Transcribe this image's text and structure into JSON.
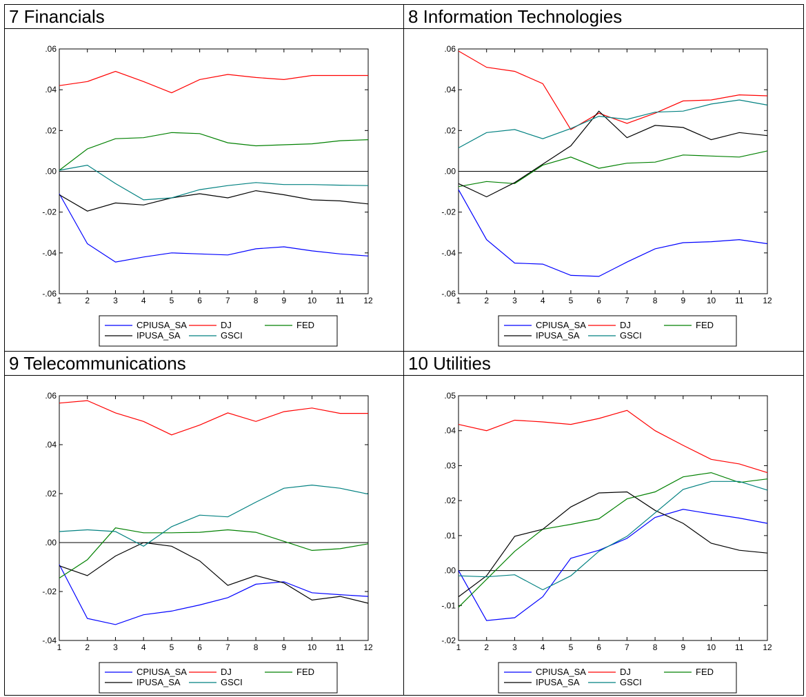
{
  "panels": [
    {
      "title": "7 Financials",
      "chart_data": {
        "type": "line",
        "x": [
          1,
          2,
          3,
          4,
          5,
          6,
          7,
          8,
          9,
          10,
          11,
          12
        ],
        "ylim": [
          -0.06,
          0.06
        ],
        "yticks": [
          -0.06,
          -0.04,
          -0.02,
          0.0,
          0.02,
          0.04,
          0.06
        ],
        "ytick_labels": [
          "-.06",
          "-.04",
          "-.02",
          ".00",
          ".02",
          ".04",
          ".06"
        ],
        "series": [
          {
            "name": "CPIUSA_SA",
            "color": "#0000ff",
            "values": [
              -0.011,
              -0.0355,
              -0.0445,
              -0.042,
              -0.04,
              -0.0405,
              -0.041,
              -0.038,
              -0.037,
              -0.039,
              -0.0405,
              -0.0415
            ]
          },
          {
            "name": "DJ",
            "color": "#ff0000",
            "values": [
              0.042,
              0.044,
              0.049,
              0.044,
              0.0385,
              0.045,
              0.0475,
              0.046,
              0.045,
              0.047,
              0.047,
              0.047
            ]
          },
          {
            "name": "FED",
            "color": "#008000",
            "values": [
              0.0005,
              0.011,
              0.016,
              0.0165,
              0.019,
              0.0185,
              0.014,
              0.0125,
              0.013,
              0.0135,
              0.015,
              0.0155
            ]
          },
          {
            "name": "IPUSA_SA",
            "color": "#000000",
            "values": [
              -0.0115,
              -0.0195,
              -0.0155,
              -0.0165,
              -0.013,
              -0.011,
              -0.013,
              -0.0095,
              -0.0115,
              -0.014,
              -0.0145,
              -0.016
            ]
          },
          {
            "name": "GSCI",
            "color": "#008080",
            "values": [
              0.0005,
              0.003,
              -0.006,
              -0.014,
              -0.013,
              -0.009,
              -0.007,
              -0.0055,
              -0.0065,
              -0.0065,
              -0.0068,
              -0.007
            ]
          }
        ]
      }
    },
    {
      "title": "8 Information Technologies",
      "chart_data": {
        "type": "line",
        "x": [
          1,
          2,
          3,
          4,
          5,
          6,
          7,
          8,
          9,
          10,
          11,
          12
        ],
        "ylim": [
          -0.06,
          0.06
        ],
        "yticks": [
          -0.06,
          -0.04,
          -0.02,
          0.0,
          0.02,
          0.04,
          0.06
        ],
        "ytick_labels": [
          "-.06",
          "-.04",
          "-.02",
          ".00",
          ".02",
          ".04",
          ".06"
        ],
        "series": [
          {
            "name": "CPIUSA_SA",
            "color": "#0000ff",
            "values": [
              -0.009,
              -0.0335,
              -0.045,
              -0.0455,
              -0.051,
              -0.0515,
              -0.0445,
              -0.038,
              -0.035,
              -0.0345,
              -0.0335,
              -0.0355
            ]
          },
          {
            "name": "DJ",
            "color": "#ff0000",
            "values": [
              0.059,
              0.051,
              0.049,
              0.043,
              0.0205,
              0.0285,
              0.0235,
              0.0285,
              0.0345,
              0.035,
              0.0375,
              0.037
            ]
          },
          {
            "name": "FED",
            "color": "#008000",
            "values": [
              -0.0075,
              -0.005,
              -0.006,
              0.003,
              0.007,
              0.0015,
              0.004,
              0.0045,
              0.008,
              0.0075,
              0.007,
              0.01
            ]
          },
          {
            "name": "IPUSA_SA",
            "color": "#000000",
            "values": [
              -0.006,
              -0.0125,
              -0.0055,
              0.0035,
              0.0125,
              0.0295,
              0.0165,
              0.0225,
              0.0215,
              0.0155,
              0.019,
              0.0175
            ]
          },
          {
            "name": "GSCI",
            "color": "#008080",
            "values": [
              0.0115,
              0.019,
              0.0205,
              0.016,
              0.021,
              0.027,
              0.0255,
              0.029,
              0.0295,
              0.033,
              0.035,
              0.0325
            ]
          }
        ]
      }
    },
    {
      "title": "9 Telecommunications",
      "chart_data": {
        "type": "line",
        "x": [
          1,
          2,
          3,
          4,
          5,
          6,
          7,
          8,
          9,
          10,
          11,
          12
        ],
        "ylim": [
          -0.04,
          0.06
        ],
        "yticks": [
          -0.04,
          -0.02,
          0.0,
          0.02,
          0.04,
          0.06
        ],
        "ytick_labels": [
          "-.04",
          "-.02",
          ".00",
          ".02",
          ".04",
          ".06"
        ],
        "series": [
          {
            "name": "CPIUSA_SA",
            "color": "#0000ff",
            "values": [
              -0.009,
              -0.031,
              -0.0335,
              -0.0295,
              -0.028,
              -0.0255,
              -0.0225,
              -0.017,
              -0.016,
              -0.0205,
              -0.0213,
              -0.022
            ]
          },
          {
            "name": "DJ",
            "color": "#ff0000",
            "values": [
              0.057,
              0.058,
              0.053,
              0.0495,
              0.044,
              0.048,
              0.053,
              0.0495,
              0.0535,
              0.055,
              0.0528,
              0.0528
            ]
          },
          {
            "name": "FED",
            "color": "#008000",
            "values": [
              -0.0145,
              -0.007,
              0.006,
              0.004,
              0.004,
              0.0042,
              0.0052,
              0.0042,
              0.0005,
              -0.0032,
              -0.0025,
              -0.0005
            ]
          },
          {
            "name": "IPUSA_SA",
            "color": "#000000",
            "values": [
              -0.0095,
              -0.0135,
              -0.0055,
              0.0,
              -0.0015,
              -0.0075,
              -0.0175,
              -0.0135,
              -0.0165,
              -0.0235,
              -0.022,
              -0.0248
            ]
          },
          {
            "name": "GSCI",
            "color": "#008080",
            "values": [
              0.0045,
              0.0052,
              0.0045,
              -0.0015,
              0.0065,
              0.0112,
              0.0105,
              0.0165,
              0.0222,
              0.0235,
              0.0222,
              0.0198
            ]
          }
        ]
      }
    },
    {
      "title": "10 Utilities",
      "chart_data": {
        "type": "line",
        "x": [
          1,
          2,
          3,
          4,
          5,
          6,
          7,
          8,
          9,
          10,
          11,
          12
        ],
        "ylim": [
          -0.02,
          0.05
        ],
        "yticks": [
          -0.02,
          -0.01,
          0.0,
          0.01,
          0.02,
          0.03,
          0.04,
          0.05
        ],
        "ytick_labels": [
          "-.02",
          "-.01",
          ".00",
          ".01",
          ".02",
          ".03",
          ".04",
          ".05"
        ],
        "series": [
          {
            "name": "CPIUSA_SA",
            "color": "#0000ff",
            "values": [
              0.0,
              -0.0143,
              -0.0135,
              -0.0075,
              0.0035,
              0.0058,
              0.0092,
              0.0152,
              0.0175,
              0.0162,
              0.015,
              0.0135
            ]
          },
          {
            "name": "DJ",
            "color": "#ff0000",
            "values": [
              0.0418,
              0.04,
              0.043,
              0.0425,
              0.0418,
              0.0435,
              0.0458,
              0.04,
              0.0358,
              0.0318,
              0.0305,
              0.028
            ]
          },
          {
            "name": "FED",
            "color": "#008000",
            "values": [
              -0.0105,
              -0.0025,
              0.0055,
              0.0118,
              0.0132,
              0.0148,
              0.0205,
              0.0225,
              0.0268,
              0.028,
              0.0252,
              0.0262
            ]
          },
          {
            "name": "IPUSA_SA",
            "color": "#000000",
            "values": [
              -0.0075,
              -0.0015,
              0.0098,
              0.0118,
              0.0182,
              0.0222,
              0.0225,
              0.0172,
              0.0135,
              0.0078,
              0.0058,
              0.005
            ]
          },
          {
            "name": "GSCI",
            "color": "#008080",
            "values": [
              -0.0015,
              -0.0018,
              -0.0012,
              -0.0055,
              -0.0015,
              0.0055,
              0.0098,
              0.0165,
              0.0232,
              0.0255,
              0.0255,
              0.023
            ]
          }
        ]
      }
    }
  ],
  "legend_order": [
    [
      "CPIUSA_SA",
      "DJ",
      "FED"
    ],
    [
      "IPUSA_SA",
      "GSCI"
    ]
  ]
}
